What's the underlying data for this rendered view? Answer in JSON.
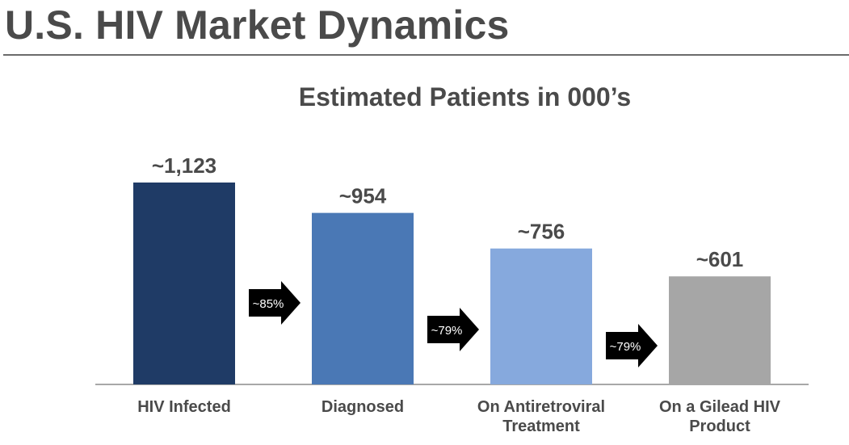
{
  "page": {
    "title": "U.S. HIV Market Dynamics"
  },
  "chart_data": {
    "type": "bar",
    "title": "Estimated Patients in 000’s",
    "xlabel": "",
    "ylabel": "",
    "categories": [
      "HIV Infected",
      "Diagnosed",
      "On Antiretroviral Treatment",
      "On a Gilead HIV Product"
    ],
    "category_lines": [
      [
        "HIV Infected"
      ],
      [
        "Diagnosed"
      ],
      [
        "On Antiretroviral",
        "Treatment"
      ],
      [
        "On a Gilead HIV",
        "Product"
      ]
    ],
    "values": [
      1123,
      954,
      756,
      601
    ],
    "data_labels": [
      "~1,123",
      "~954",
      "~756",
      "~601"
    ],
    "bar_colors": [
      "#1f3b66",
      "#4a78b5",
      "#86a9dd",
      "#a6a6a6"
    ],
    "conversion_arrows": [
      {
        "label": "~85%"
      },
      {
        "label": "~79%"
      },
      {
        "label": "~79%"
      }
    ],
    "ylim": [
      0,
      1123
    ],
    "grid": false,
    "legend": "none"
  }
}
